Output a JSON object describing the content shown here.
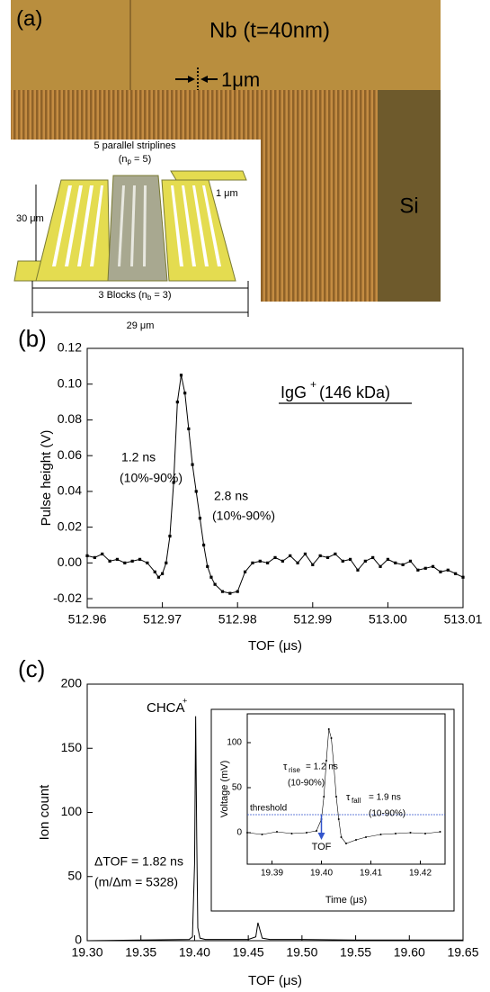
{
  "panel_a": {
    "label": "(a)",
    "film": "Nb (t=40nm)",
    "width": "1μm",
    "substrate": "Si",
    "diagram": {
      "title": "5 parallel striplines",
      "np": [
        "(n",
        "p",
        " = 5)"
      ],
      "height": "30 μm",
      "line_width": "1 μm",
      "blocks": [
        "3 Blocks (n",
        "b",
        " = 3)"
      ],
      "total_width": "29 μm"
    }
  },
  "chart_data": [
    {
      "type": "line",
      "panel_label": "(b)",
      "xlabel": "TOF (μs)",
      "ylabel": "Pulse height (V)",
      "color": "#000000",
      "marker": "square",
      "x": [
        512.96,
        512.961,
        512.962,
        512.963,
        512.964,
        512.965,
        512.966,
        512.967,
        512.968,
        512.969,
        512.9695,
        512.97,
        512.9705,
        512.971,
        512.9715,
        512.972,
        512.9725,
        512.973,
        512.9735,
        512.974,
        512.9745,
        512.975,
        512.9755,
        512.976,
        512.9765,
        512.977,
        512.978,
        512.979,
        512.98,
        512.981,
        512.982,
        512.983,
        512.984,
        512.985,
        512.986,
        512.987,
        512.988,
        512.989,
        512.99,
        512.991,
        512.992,
        512.993,
        512.994,
        512.995,
        512.996,
        512.997,
        512.998,
        512.999,
        513.0,
        513.001,
        513.002,
        513.003,
        513.004,
        513.005,
        513.006,
        513.007,
        513.008,
        513.009,
        513.01
      ],
      "values": [
        0.004,
        0.003,
        0.005,
        0.001,
        0.002,
        0.0,
        0.001,
        0.002,
        0.0,
        -0.005,
        -0.008,
        -0.006,
        0.0,
        0.015,
        0.045,
        0.09,
        0.105,
        0.095,
        0.075,
        0.055,
        0.04,
        0.025,
        0.01,
        -0.002,
        -0.008,
        -0.012,
        -0.016,
        -0.017,
        -0.016,
        -0.005,
        0.0,
        0.001,
        0.0,
        0.003,
        0.001,
        0.004,
        0.0,
        0.005,
        -0.001,
        0.004,
        0.003,
        0.005,
        0.001,
        0.002,
        -0.004,
        0.001,
        0.003,
        -0.002,
        0.002,
        0.0,
        -0.001,
        0.001,
        -0.004,
        -0.003,
        -0.002,
        -0.005,
        -0.004,
        -0.006,
        -0.008
      ],
      "xlim": [
        512.96,
        513.01
      ],
      "xticks": [
        512.96,
        512.97,
        512.98,
        512.99,
        {
          "value": 513,
          "label": "513.00"
        },
        513.01
      ],
      "ylim": [
        -0.025,
        0.12
      ],
      "yticks": [
        -0.02,
        {
          "value": 0,
          "label": "0.00"
        },
        0.02,
        0.04,
        0.06,
        0.08,
        {
          "value": 0.1,
          "label": "0.10"
        },
        0.12
      ],
      "annotations": [
        "IgG",
        "+",
        "(146 kDa)",
        "1.2 ns",
        "(10%-90%)",
        "2.8 ns",
        "(10%-90%)"
      ]
    },
    {
      "type": "line",
      "panel_label": "(c)",
      "xlabel": "TOF (μs)",
      "ylabel": "Ion count",
      "color": "#000000",
      "x": [
        19.3,
        19.35,
        19.395,
        19.398,
        19.4,
        19.401,
        19.402,
        19.403,
        19.405,
        19.41,
        19.45,
        19.457,
        19.459,
        19.461,
        19.463,
        19.47,
        19.5,
        19.55,
        19.6,
        19.65
      ],
      "values": [
        0,
        0.5,
        1,
        3,
        60,
        175,
        80,
        10,
        2,
        1,
        1,
        3,
        14,
        8,
        2,
        1,
        1,
        0.5,
        0.5,
        0.5
      ],
      "xlim": [
        19.3,
        19.65
      ],
      "xticks": [
        {
          "value": 19.3,
          "label": "19.30"
        },
        19.35,
        {
          "value": 19.4,
          "label": "19.40"
        },
        19.45,
        {
          "value": 19.5,
          "label": "19.50"
        },
        19.55,
        {
          "value": 19.6,
          "label": "19.60"
        },
        19.65
      ],
      "ylim": [
        0,
        200
      ],
      "yticks": [
        0,
        50,
        100,
        150,
        200
      ],
      "annotations": [
        "CHCA",
        "+",
        "ΔTOF = 1.82 ns",
        "(m/Δm = 5328)"
      ]
    },
    {
      "type": "line",
      "xlabel": "Time (μs)",
      "ylabel": "Voltage (mV)",
      "color": "#000000",
      "marker": "dot",
      "x": [
        19.385,
        19.388,
        19.391,
        19.394,
        19.397,
        19.399,
        19.4,
        19.4005,
        19.401,
        19.4015,
        19.402,
        19.4025,
        19.403,
        19.4035,
        19.404,
        19.405,
        19.407,
        19.409,
        19.412,
        19.415,
        19.418,
        19.421,
        19.424
      ],
      "values": [
        0,
        -2,
        1,
        -1,
        0,
        2,
        15,
        40,
        80,
        115,
        105,
        75,
        40,
        15,
        -5,
        -12,
        -8,
        -5,
        -2,
        -1,
        0,
        -1,
        1
      ],
      "xlim": [
        19.385,
        19.425
      ],
      "xticks": [
        19.39,
        {
          "value": 19.4,
          "label": "19.40"
        },
        19.41,
        19.42
      ],
      "ylim": [
        -35,
        132
      ],
      "yticks": [
        0,
        50,
        100
      ],
      "threshold": {
        "value": 20,
        "label": "threshold",
        "color": "#3355cc"
      },
      "tof_marker": {
        "x": 19.4,
        "label": "TOF"
      },
      "annotations": [
        "τ",
        "rise",
        "= 1.2 ns",
        "(10-90%)",
        "τ",
        "fall",
        "= 1.9 ns",
        "(10-90%)"
      ]
    }
  ]
}
